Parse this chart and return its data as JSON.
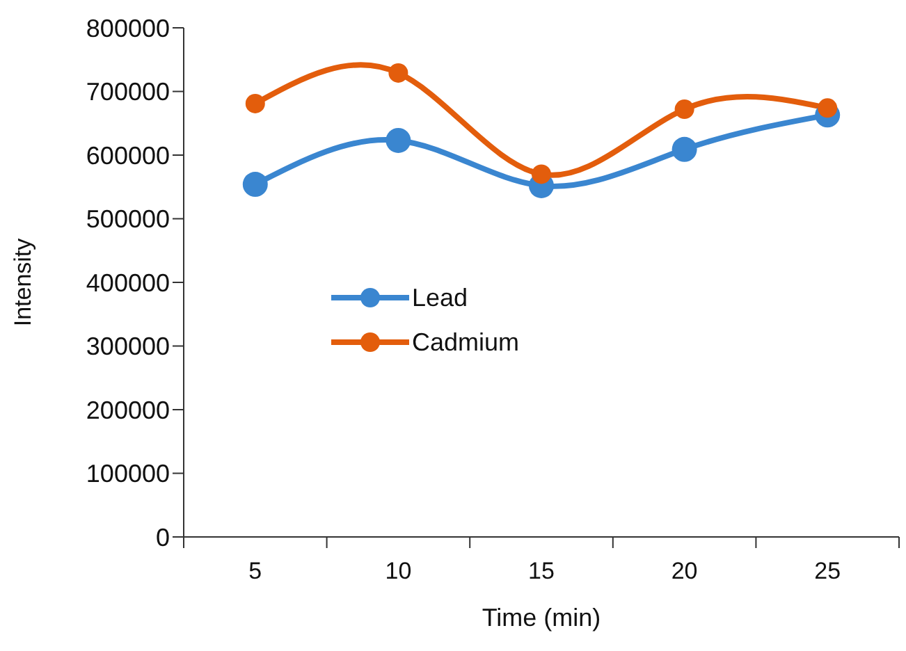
{
  "chart_data": {
    "type": "line",
    "xlabel": "Time (min)",
    "ylabel": "Intensity",
    "categories": [
      "5",
      "10",
      "15",
      "20",
      "25"
    ],
    "series": [
      {
        "name": "Lead",
        "color": "#3a86d0",
        "values": [
          554000,
          623000,
          552000,
          609000,
          663000
        ]
      },
      {
        "name": "Cadmium",
        "color": "#e35d0c",
        "values": [
          681000,
          729000,
          570000,
          672000,
          674000
        ]
      }
    ],
    "ylim": [
      0,
      800000
    ],
    "yticks": [
      0,
      100000,
      200000,
      300000,
      400000,
      500000,
      600000,
      700000,
      800000
    ],
    "grid": false,
    "legend": "center",
    "marker": "circle"
  }
}
